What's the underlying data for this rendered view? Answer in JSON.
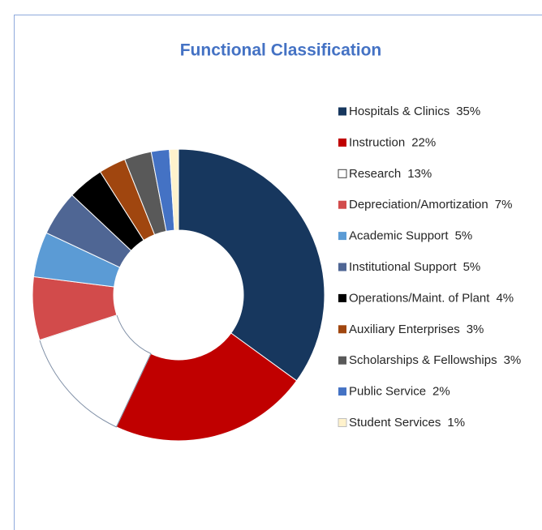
{
  "chart_data": {
    "type": "doughnut",
    "title": "Functional Classification",
    "categories": [
      "Hospitals & Clinics",
      "Instruction",
      "Research",
      "Depreciation/Amortization",
      "Academic Support",
      "Institutional Support",
      "Operations/Maint. of Plant",
      "Auxiliary Enterprises",
      "Scholarships & Fellowships",
      "Public Service",
      "Student Services"
    ],
    "values": [
      35,
      22,
      13,
      7,
      5,
      5,
      4,
      3,
      3,
      2,
      1
    ],
    "value_labels": [
      "35%",
      "22%",
      "13%",
      "7%",
      "5%",
      "5%",
      "4%",
      "3%",
      "3%",
      "2%",
      "1%"
    ],
    "colors": [
      "#17375e",
      "#c00000",
      "#ffffff",
      "#d24b4b",
      "#5b9bd5",
      "#4f6694",
      "#000000",
      "#a0460f",
      "#595959",
      "#4472c4",
      "#fff2cc"
    ],
    "legend": "right"
  }
}
